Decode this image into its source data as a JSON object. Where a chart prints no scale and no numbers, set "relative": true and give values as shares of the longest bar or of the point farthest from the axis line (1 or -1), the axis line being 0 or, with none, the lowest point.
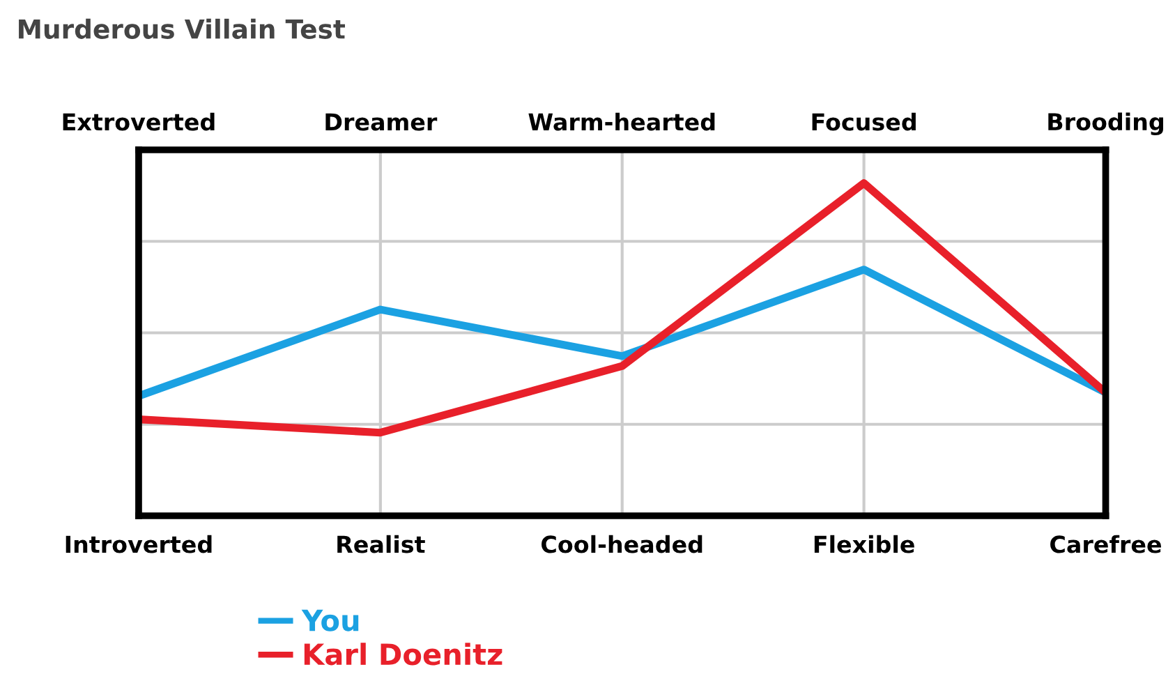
{
  "chart_data": {
    "type": "line",
    "title": "Murderous Villain Test",
    "relative": true,
    "categories": [
      "Introverted",
      "Realist",
      "Cool-headed",
      "Flexible",
      "Carefree"
    ],
    "annotations": [
      "Extroverted",
      "Dreamer",
      "Warm-hearted",
      "Focused",
      "Brooding"
    ],
    "series": [
      {
        "name": "You",
        "color": "#1ba1e2",
        "values": [
          0.36,
          0.62,
          0.48,
          0.74,
          0.37
        ]
      },
      {
        "name": "Karl Doenitz",
        "color": "#e8202a",
        "values": [
          0.29,
          0.25,
          0.45,
          1,
          0.37
        ]
      }
    ],
    "grid": true,
    "legend": "bottom",
    "marker": "none",
    "line_style": "solid"
  }
}
